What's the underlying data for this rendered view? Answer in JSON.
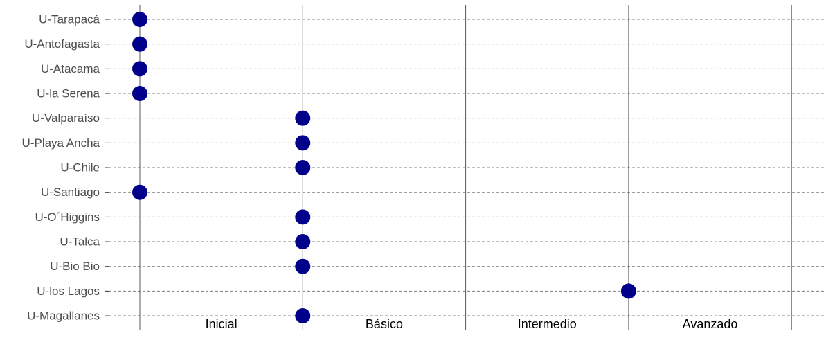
{
  "chart_data": {
    "type": "scatter",
    "title": "",
    "xlabel": "",
    "ylabel": "",
    "x_levels": [
      "Inicial",
      "Básico",
      "Intermedio",
      "Avanzado"
    ],
    "categories": [
      "U-Tarapacá",
      "U-Antofagasta",
      "U-Atacama",
      "U-la Serena",
      "U-Valparaíso",
      "U-Playa Ancha",
      "U-Chile",
      "U-Santiago",
      "U-O´Higgins",
      "U-Talca",
      "U-Bio Bio",
      "U-los Lagos",
      "U-Magallanes"
    ],
    "values": [
      0,
      0,
      0,
      0,
      1,
      1,
      1,
      0,
      1,
      1,
      1,
      3,
      1
    ],
    "xlim": [
      0,
      4
    ],
    "grid": true,
    "legend": "none",
    "colors": {
      "point": "#00008B",
      "grid_dashed": "#7f7f7f",
      "boundary": "#5a5a5a",
      "label": "#4d4d4d",
      "level_label": "#000000"
    }
  }
}
